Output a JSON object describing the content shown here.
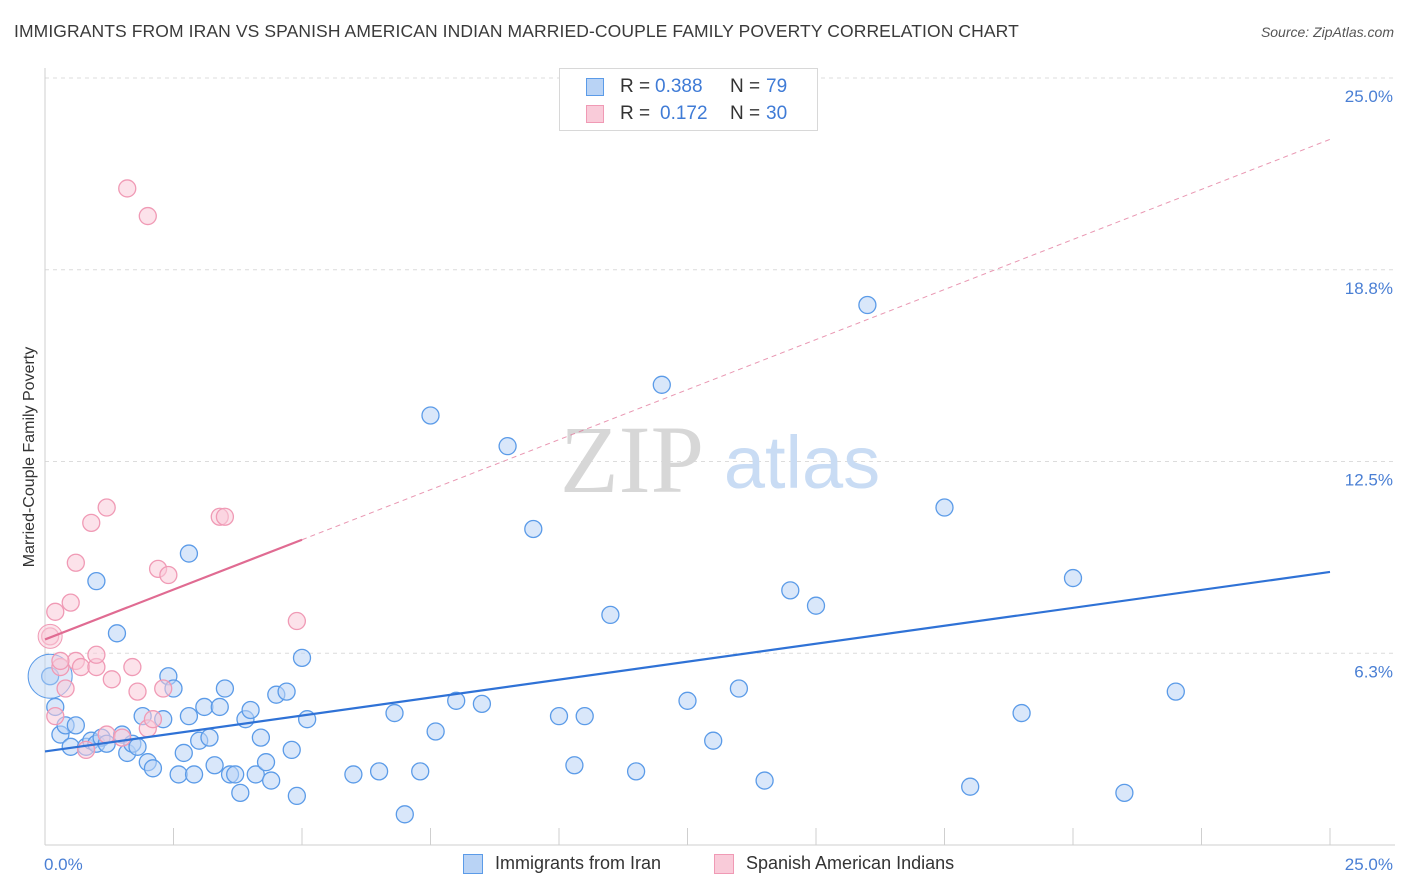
{
  "title": "IMMIGRANTS FROM IRAN VS SPANISH AMERICAN INDIAN MARRIED-COUPLE FAMILY POVERTY CORRELATION CHART",
  "source": "Source: ZipAtlas.com",
  "watermark": {
    "zip": "ZIP",
    "atlas": "atlas"
  },
  "legend": {
    "rows": [
      {
        "r_label": "R =",
        "r_value": "0.388",
        "n_label": "N =",
        "n_value": "79",
        "color": "#5b9be8"
      },
      {
        "r_label": "R =",
        "r_value": "0.172",
        "n_label": "N =",
        "n_value": "30",
        "color": "#f09ab5"
      }
    ]
  },
  "chart_data": {
    "type": "scatter",
    "xlabel": "",
    "ylabel": "Married-Couple Family Poverty",
    "xlim": [
      0,
      25
    ],
    "ylim": [
      0,
      25
    ],
    "x_tick_labels": [
      "0.0%",
      "25.0%"
    ],
    "y_tick_labels": [
      "6.3%",
      "12.5%",
      "18.8%",
      "25.0%"
    ],
    "y_ticks": [
      6.25,
      12.5,
      18.75,
      25
    ],
    "grid": true,
    "colors": {
      "iran": "#5b9be8",
      "iran_line": "#2f72d6",
      "spanish": "#f09ab5",
      "spanish_line": "#e06b92"
    },
    "series": [
      {
        "name": "Immigrants from Iran",
        "trend": {
          "x": [
            0,
            25
          ],
          "y": [
            3.05,
            8.9
          ]
        },
        "points": [
          [
            0.1,
            5.5
          ],
          [
            0.2,
            4.5
          ],
          [
            0.3,
            3.6
          ],
          [
            0.4,
            3.9
          ],
          [
            0.5,
            3.2
          ],
          [
            0.6,
            3.9
          ],
          [
            0.8,
            3.2
          ],
          [
            0.9,
            3.4
          ],
          [
            1.0,
            3.3
          ],
          [
            1.1,
            3.5
          ],
          [
            1.2,
            3.3
          ],
          [
            1.4,
            6.9
          ],
          [
            1.5,
            3.6
          ],
          [
            1.6,
            3.0
          ],
          [
            1.7,
            3.3
          ],
          [
            1.8,
            3.2
          ],
          [
            1.9,
            4.2
          ],
          [
            2.0,
            2.7
          ],
          [
            2.1,
            2.5
          ],
          [
            2.3,
            4.1
          ],
          [
            2.4,
            5.5
          ],
          [
            2.5,
            5.1
          ],
          [
            2.6,
            2.3
          ],
          [
            2.7,
            3.0
          ],
          [
            2.8,
            4.2
          ],
          [
            2.9,
            2.3
          ],
          [
            3.0,
            3.4
          ],
          [
            3.1,
            4.5
          ],
          [
            3.2,
            3.5
          ],
          [
            3.3,
            2.6
          ],
          [
            3.4,
            4.5
          ],
          [
            3.5,
            5.1
          ],
          [
            3.6,
            2.3
          ],
          [
            3.7,
            2.3
          ],
          [
            3.8,
            1.7
          ],
          [
            3.9,
            4.1
          ],
          [
            4.0,
            4.4
          ],
          [
            4.1,
            2.3
          ],
          [
            4.2,
            3.5
          ],
          [
            4.3,
            2.7
          ],
          [
            4.4,
            2.1
          ],
          [
            4.5,
            4.9
          ],
          [
            4.7,
            5.0
          ],
          [
            4.8,
            3.1
          ],
          [
            4.9,
            1.6
          ],
          [
            5.0,
            6.1
          ],
          [
            5.1,
            4.1
          ],
          [
            6.0,
            2.3
          ],
          [
            6.5,
            2.4
          ],
          [
            6.8,
            4.3
          ],
          [
            7.0,
            1.0
          ],
          [
            7.3,
            2.4
          ],
          [
            7.5,
            14.0
          ],
          [
            7.6,
            3.7
          ],
          [
            8.0,
            4.7
          ],
          [
            8.5,
            4.6
          ],
          [
            9.0,
            13.0
          ],
          [
            9.5,
            10.3
          ],
          [
            10.0,
            4.2
          ],
          [
            10.3,
            2.6
          ],
          [
            10.5,
            4.2
          ],
          [
            11.0,
            7.5
          ],
          [
            11.5,
            2.4
          ],
          [
            12.0,
            15.0
          ],
          [
            12.5,
            4.7
          ],
          [
            13.0,
            3.4
          ],
          [
            13.5,
            5.1
          ],
          [
            14.0,
            2.1
          ],
          [
            14.5,
            8.3
          ],
          [
            15.0,
            7.8
          ],
          [
            16.0,
            17.6
          ],
          [
            17.5,
            11.0
          ],
          [
            18.0,
            1.9
          ],
          [
            19.0,
            4.3
          ],
          [
            20.0,
            8.7
          ],
          [
            21.0,
            1.7
          ],
          [
            22.0,
            5.0
          ],
          [
            1.0,
            8.6
          ],
          [
            2.8,
            9.5
          ]
        ],
        "color": "#5b9be8"
      },
      {
        "name": "Spanish American Indians",
        "trend": {
          "x": [
            0,
            5
          ],
          "y": [
            6.7,
            9.95
          ]
        },
        "trend_extended": {
          "x": [
            5,
            25
          ],
          "y": [
            9.95,
            23.0
          ]
        },
        "points": [
          [
            0.1,
            6.8
          ],
          [
            0.2,
            7.6
          ],
          [
            0.3,
            5.8
          ],
          [
            0.4,
            5.1
          ],
          [
            0.5,
            7.9
          ],
          [
            0.6,
            6.0
          ],
          [
            0.6,
            9.2
          ],
          [
            0.7,
            5.8
          ],
          [
            0.8,
            3.1
          ],
          [
            0.9,
            10.5
          ],
          [
            1.0,
            5.8
          ],
          [
            1.0,
            6.2
          ],
          [
            1.2,
            3.6
          ],
          [
            1.2,
            11.0
          ],
          [
            1.3,
            5.4
          ],
          [
            1.5,
            3.5
          ],
          [
            1.6,
            21.4
          ],
          [
            1.7,
            5.8
          ],
          [
            1.8,
            5.0
          ],
          [
            2.0,
            20.5
          ],
          [
            2.0,
            3.8
          ],
          [
            2.1,
            4.1
          ],
          [
            2.2,
            9.0
          ],
          [
            2.3,
            5.1
          ],
          [
            2.4,
            8.8
          ],
          [
            3.4,
            10.7
          ],
          [
            3.5,
            10.7
          ],
          [
            4.9,
            7.3
          ],
          [
            0.3,
            6.0
          ],
          [
            0.2,
            4.2
          ]
        ],
        "color": "#f09ab5"
      }
    ]
  }
}
